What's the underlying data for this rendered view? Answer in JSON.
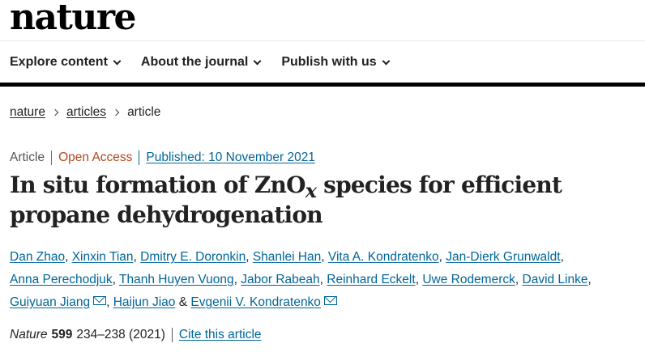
{
  "header": {
    "logo": "nature",
    "nav": [
      {
        "label": "Explore content"
      },
      {
        "label": "About the journal"
      },
      {
        "label": "Publish with us"
      }
    ]
  },
  "breadcrumb": {
    "items": [
      "nature",
      "articles"
    ],
    "current": "article"
  },
  "article": {
    "type": "Article",
    "access": "Open Access",
    "published": "Published: 10 November 2021",
    "title_part1": "In situ formation of ZnO",
    "title_sub": "x",
    "title_part2": " species for efficient propane dehydrogenation",
    "authors": [
      "Dan Zhao",
      "Xinxin Tian",
      "Dmitry E. Doronkin",
      "Shanlei Han",
      "Vita A. Kondratenko",
      "Jan-Dierk Grunwaldt",
      "Anna Perechodjuk",
      "Thanh Huyen Vuong",
      "Jabor Rabeah",
      "Reinhard Eckelt",
      "Uwe Rodemerck",
      "David Linke",
      "Guiyuan Jiang",
      "Haijun Jiao",
      "Evgenii V. Kondratenko"
    ],
    "author_sep": ", ",
    "author_and": " & ",
    "citation": {
      "journal": "Nature",
      "volume": "599",
      "pages": "234–238 (2021)",
      "cite_label": "Cite this article"
    }
  },
  "colors": {
    "link": "#006699",
    "open_access": "#b5451b",
    "nav_rule": "#000000"
  },
  "icons": {
    "nav_dropdown": "chevron-down-icon",
    "breadcrumb_separator": "chevron-right-icon",
    "corresponding_author": "mail-icon"
  }
}
